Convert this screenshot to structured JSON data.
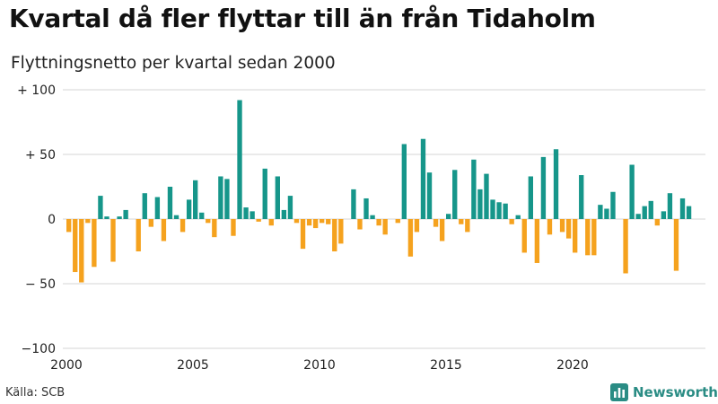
{
  "title": "Kvartal då fler flyttar till än från Tidaholm",
  "subtitle": "Flyttningsnetto per kvartal sedan 2000",
  "source": "Källa: SCB",
  "brand": "Newsworthy",
  "colors": {
    "positive": "#16968a",
    "negative": "#f5a21e",
    "grid": "#d4d4d4",
    "brand": "#2a8c84"
  },
  "chart_data": {
    "type": "bar",
    "x_start_year": 2000,
    "periods_per_year": 4,
    "ylim": [
      -100,
      100
    ],
    "y_ticks": [
      {
        "value": 100,
        "label": "+ 100"
      },
      {
        "value": 50,
        "label": "+  50"
      },
      {
        "value": 0,
        "label": "0"
      },
      {
        "value": -50,
        "label": "− 50"
      },
      {
        "value": -100,
        "label": "−100"
      }
    ],
    "x_ticks": [
      {
        "value": 2000,
        "label": "2000"
      },
      {
        "value": 2005,
        "label": "2005"
      },
      {
        "value": 2010,
        "label": "2010"
      },
      {
        "value": 2015,
        "label": "2015"
      },
      {
        "value": 2020,
        "label": "2020"
      }
    ],
    "values": [
      -10,
      -41,
      -49,
      -3,
      -37,
      18,
      2,
      -33,
      2,
      7,
      0,
      -25,
      20,
      -6,
      17,
      -17,
      25,
      3,
      -10,
      15,
      30,
      5,
      -3,
      -14,
      33,
      31,
      -13,
      92,
      9,
      6,
      -2,
      39,
      -5,
      33,
      7,
      18,
      -3,
      -23,
      -5,
      -7,
      -3,
      -4,
      -25,
      -19,
      0,
      23,
      -8,
      16,
      3,
      -5,
      -12,
      0,
      -3,
      58,
      -29,
      -10,
      62,
      36,
      -6,
      -17,
      4,
      38,
      -4,
      -10,
      46,
      23,
      35,
      15,
      13,
      12,
      -4,
      3,
      -26,
      33,
      -34,
      48,
      -12,
      54,
      -10,
      -15,
      -26,
      34,
      -28,
      -28,
      11,
      8,
      21,
      0,
      -42,
      42,
      4,
      10,
      14,
      -5,
      6,
      20,
      -40,
      16,
      10
    ]
  }
}
